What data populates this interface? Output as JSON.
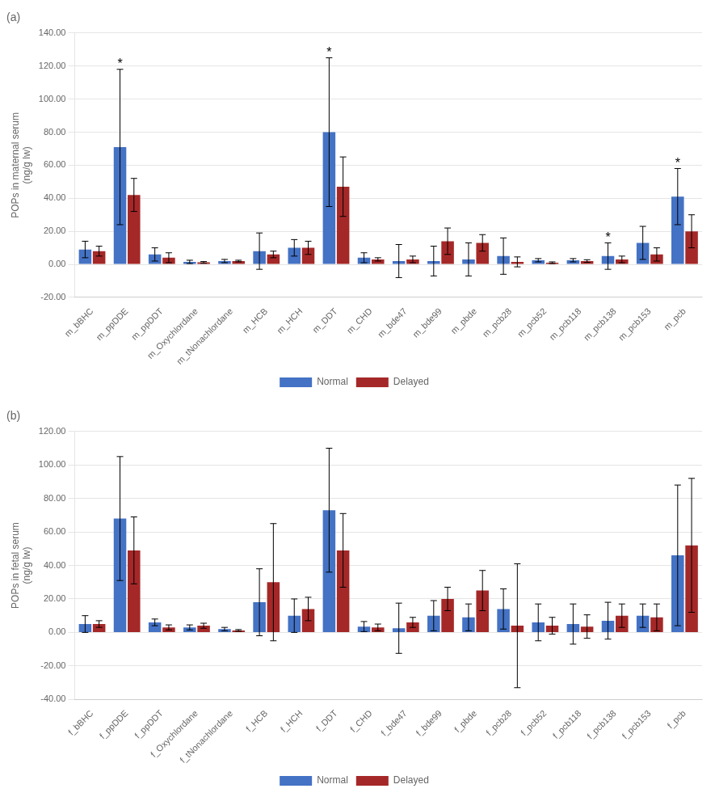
{
  "chart_data": [
    {
      "type": "bar",
      "title": "(a)",
      "ylabel": "POPs in maternal serum\n(ng/g lw)",
      "categories": [
        "m_bBHC",
        "m_ppDDE",
        "m_ppDDT",
        "m_Oxychlordane",
        "m_tNonachlordane",
        "m_HCB",
        "m_HCH",
        "m_DDT",
        "m_CHD",
        "m_bde47",
        "m_bde99",
        "m_pbde",
        "m_pcb28",
        "m_pcb52",
        "m_pcb118",
        "m_pcb138",
        "m_pcb153",
        "m_pcb"
      ],
      "series": [
        {
          "name": "Normal",
          "color": "#4472C4",
          "values": [
            9,
            71,
            6,
            1.5,
            2,
            8,
            10,
            80,
            4,
            2,
            2,
            3,
            5,
            2.5,
            2.5,
            5,
            13,
            41
          ],
          "errors": [
            5,
            47,
            4,
            1,
            1,
            11,
            5,
            45,
            3,
            10,
            9,
            10,
            11,
            1,
            1,
            8,
            10,
            17
          ]
        },
        {
          "name": "Delayed",
          "color": "#A52828",
          "values": [
            8,
            42,
            4,
            1.2,
            2,
            6,
            10,
            47,
            3,
            3,
            14,
            13,
            1.5,
            1,
            2,
            3,
            6,
            20
          ],
          "errors": [
            3,
            10,
            3,
            0.5,
            0.5,
            2,
            4,
            18,
            1,
            2,
            8,
            5,
            3,
            0.5,
            0.8,
            2,
            4,
            10
          ]
        }
      ],
      "annotations": [
        {
          "category": "m_ppDDE",
          "series": "Normal",
          "text": "*"
        },
        {
          "category": "m_DDT",
          "series": "Normal",
          "text": "*"
        },
        {
          "category": "m_pcb138",
          "series": "Normal",
          "text": "*"
        },
        {
          "category": "m_pcb",
          "series": "Normal",
          "text": "*"
        }
      ],
      "ylim": [
        -20,
        140
      ],
      "yticks": [
        {
          "value": -20,
          "label": "-20.00"
        },
        {
          "value": 0,
          "label": "0.00"
        },
        {
          "value": 20,
          "label": "20.00"
        },
        {
          "value": 40,
          "label": "40.00"
        },
        {
          "value": 60,
          "label": "60.00"
        },
        {
          "value": 80,
          "label": "80.00"
        },
        {
          "value": 100,
          "label": "100.00"
        },
        {
          "value": 120,
          "label": "120.00"
        },
        {
          "value": 140,
          "label": "140.00"
        }
      ],
      "grid": true,
      "legend": "bottom"
    },
    {
      "type": "bar",
      "title": "(b)",
      "ylabel": "POPs in fetal serum\n(ng/g lw)",
      "categories": [
        "f_bBHC",
        "f_ppDDE",
        "f_ppDDT",
        "f_Oxychlordane",
        "f_tNonachlordane",
        "f_HCB",
        "f_HCH",
        "f_DDT",
        "f_CHD",
        "f_bde47",
        "f_bde99",
        "f_pbde",
        "f_pcb28",
        "f_pcb52",
        "f_pcb118",
        "f_pcb138",
        "f_pcb153",
        "f_pcb"
      ],
      "series": [
        {
          "name": "Normal",
          "color": "#4472C4",
          "values": [
            5,
            68,
            6,
            3,
            2,
            18,
            10,
            73,
            3.5,
            2.5,
            10,
            9,
            14,
            6,
            5,
            7,
            10,
            46
          ],
          "errors": [
            5,
            37,
            2,
            1.5,
            1,
            20,
            10,
            37,
            3,
            15,
            9,
            8,
            12,
            11,
            12,
            11,
            7,
            42
          ]
        },
        {
          "name": "Delayed",
          "color": "#A52828",
          "values": [
            5,
            49,
            3,
            4,
            1.2,
            30,
            14,
            49,
            3,
            6,
            20,
            25,
            4,
            4,
            3.5,
            10,
            9,
            52
          ],
          "errors": [
            2,
            20,
            1.5,
            1.5,
            0.5,
            35,
            7,
            22,
            2,
            3,
            7,
            12,
            37,
            5,
            7,
            7,
            8,
            40
          ]
        }
      ],
      "ylim": [
        -40,
        120
      ],
      "yticks": [
        {
          "value": -40,
          "label": "-40.00"
        },
        {
          "value": -20,
          "label": "-20.00"
        },
        {
          "value": 0,
          "label": "0.00"
        },
        {
          "value": 20,
          "label": "20.00"
        },
        {
          "value": 40,
          "label": "40.00"
        },
        {
          "value": 60,
          "label": "60.00"
        },
        {
          "value": 80,
          "label": "80.00"
        },
        {
          "value": 100,
          "label": "100.00"
        },
        {
          "value": 120,
          "label": "120.00"
        }
      ],
      "grid": true,
      "legend": "bottom"
    }
  ]
}
